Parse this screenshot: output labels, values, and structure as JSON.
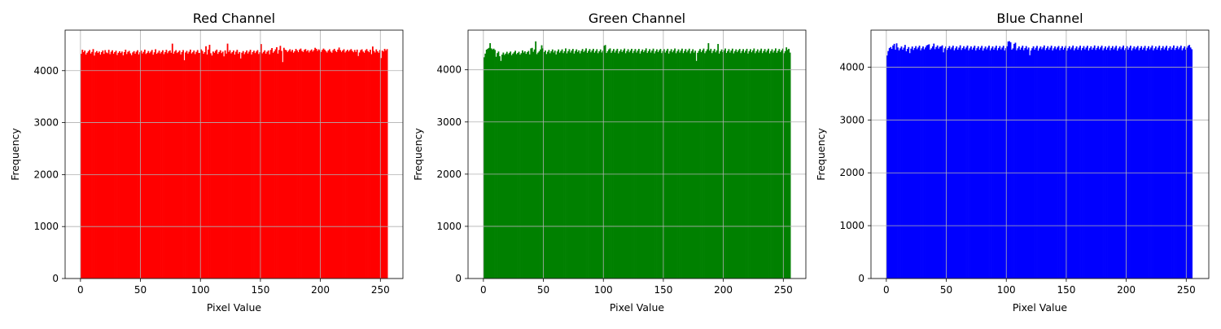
{
  "chart_data": [
    {
      "type": "bar",
      "title": "Red Channel",
      "xlabel": "Pixel Value",
      "ylabel": "Frequency",
      "xlim": [
        -12.8,
        268.8
      ],
      "ylim": [
        0,
        4780
      ],
      "xticks": [
        0,
        50,
        100,
        150,
        200,
        250
      ],
      "yticks": [
        0,
        1000,
        2000,
        3000,
        4000
      ],
      "grid": true,
      "color": "#ff0000",
      "bins": 256,
      "bin_range": [
        0,
        256
      ],
      "values": [
        4324,
        4402,
        4356,
        4387,
        4311,
        4345,
        4372,
        4398,
        4330,
        4361,
        4415,
        4290,
        4352,
        4377,
        4341,
        4368,
        4309,
        4356,
        4388,
        4323,
        4395,
        4350,
        4336,
        4401,
        4318,
        4364,
        4392,
        4327,
        4358,
        4384,
        4302,
        4345,
        4373,
        4339,
        4367,
        4295,
        4356,
        4404,
        4320,
        4362,
        4381,
        4333,
        4298,
        4351,
        4376,
        4327,
        4365,
        4393,
        4314,
        4355,
        4386,
        4330,
        4362,
        4405,
        4321,
        4344,
        4379,
        4337,
        4366,
        4398,
        4308,
        4353,
        4412,
        4325,
        4348,
        4384,
        4332,
        4361,
        4393,
        4318,
        4356,
        4401,
        4336,
        4372,
        4390,
        4345,
        4520,
        4326,
        4368,
        4395,
        4339,
        4360,
        4387,
        4312,
        4357,
        4396,
        4200,
        4350,
        4381,
        4329,
        4364,
        4405,
        4331,
        4354,
        4388,
        4319,
        4362,
        4397,
        4340,
        4343,
        4410,
        4382,
        4325,
        4356,
        4470,
        4312,
        4405,
        4498,
        4335,
        4291,
        4368,
        4344,
        4380,
        4405,
        4323,
        4359,
        4392,
        4338,
        4366,
        4275,
        4390,
        4328,
        4520,
        4361,
        4394,
        4332,
        4356,
        4388,
        4310,
        4365,
        4401,
        4327,
        4359,
        4235,
        4346,
        4377,
        4318,
        4354,
        4389,
        4330,
        4366,
        4402,
        4312,
        4358,
        4385,
        4338,
        4369,
        4396,
        4320,
        4355,
        4512,
        4333,
        4361,
        4392,
        4327,
        4364,
        4388,
        4315,
        4399,
        4435,
        4345,
        4372,
        4410,
        4452,
        4328,
        4398,
        4478,
        4381,
        4165,
        4440,
        4402,
        4392,
        4358,
        4385,
        4412,
        4368,
        4400,
        4345,
        4372,
        4418,
        4390,
        4356,
        4405,
        4425,
        4380,
        4360,
        4398,
        4415,
        4372,
        4395,
        4350,
        4385,
        4408,
        4368,
        4395,
        4440,
        4420,
        4380,
        4410,
        4392,
        4360,
        4398,
        4425,
        4402,
        4375,
        4350,
        4388,
        4412,
        4368,
        4345,
        4395,
        4420,
        4380,
        4358,
        4405,
        4445,
        4395,
        4362,
        4388,
        4412,
        4350,
        4378,
        4402,
        4370,
        4395,
        4415,
        4380,
        4355,
        4398,
        4360,
        4405,
        4282,
        4350,
        4395,
        4410,
        4368,
        4345,
        4392,
        4415,
        4378,
        4355,
        4402,
        4318,
        4465,
        4380,
        4350,
        4410,
        4372,
        4345,
        4398,
        4242,
        4385,
        4368,
        4420,
        4388,
        4415
      ]
    },
    {
      "type": "bar",
      "title": "Green Channel",
      "xlabel": "Pixel Value",
      "ylabel": "Frequency",
      "xlim": [
        -12.8,
        268.8
      ],
      "ylim": [
        0,
        4760
      ],
      "xticks": [
        0,
        50,
        100,
        150,
        200,
        250
      ],
      "yticks": [
        0,
        1000,
        2000,
        3000,
        4000
      ],
      "grid": true,
      "color": "#008000",
      "bins": 256,
      "bin_range": [
        0,
        256
      ],
      "values": [
        4240,
        4310,
        4385,
        4402,
        4420,
        4510,
        4410,
        4390,
        4405,
        4380,
        4250,
        4320,
        4350,
        4260,
        4170,
        4290,
        4330,
        4285,
        4310,
        4345,
        4300,
        4325,
        4350,
        4280,
        4310,
        4335,
        4365,
        4300,
        4322,
        4346,
        4290,
        4318,
        4372,
        4330,
        4354,
        4305,
        4338,
        4362,
        4295,
        4410,
        4420,
        4345,
        4390,
        4545,
        4300,
        4330,
        4355,
        4390,
        4470,
        4410,
        4340,
        4370,
        4302,
        4345,
        4380,
        4318,
        4356,
        4390,
        4332,
        4368,
        4295,
        4352,
        4390,
        4328,
        4360,
        4392,
        4320,
        4356,
        4410,
        4315,
        4355,
        4395,
        4330,
        4368,
        4400,
        4312,
        4358,
        4392,
        4340,
        4372,
        4315,
        4362,
        4398,
        4340,
        4368,
        4410,
        4325,
        4362,
        4398,
        4335,
        4370,
        4402,
        4328,
        4360,
        4395,
        4318,
        4355,
        4390,
        4332,
        4366,
        4460,
        4475,
        4322,
        4356,
        4390,
        4410,
        4325,
        4362,
        4398,
        4330,
        4368,
        4402,
        4315,
        4356,
        4392,
        4340,
        4372,
        4406,
        4318,
        4358,
        4395,
        4335,
        4368,
        4402,
        4320,
        4362,
        4398,
        4330,
        4366,
        4400,
        4312,
        4355,
        4390,
        4338,
        4372,
        4410,
        4322,
        4358,
        4396,
        4330,
        4368,
        4405,
        4315,
        4356,
        4392,
        4338,
        4372,
        4400,
        4320,
        4360,
        4396,
        4330,
        4366,
        4402,
        4312,
        4358,
        4395,
        4336,
        4370,
        4408,
        4318,
        4356,
        4392,
        4330,
        4368,
        4405,
        4320,
        4360,
        4398,
        4335,
        4370,
        4404,
        4315,
        4358,
        4394,
        4330,
        4366,
        4170,
        4325,
        4362,
        4398,
        4338,
        4372,
        4406,
        4318,
        4356,
        4392,
        4510,
        4368,
        4402,
        4320,
        4362,
        4398,
        4335,
        4370,
        4495,
        4312,
        4355,
        4390,
        4338,
        4372,
        4408,
        4322,
        4358,
        4396,
        4330,
        4368,
        4405,
        4315,
        4356,
        4392,
        4338,
        4372,
        4400,
        4320,
        4360,
        4396,
        4330,
        4366,
        4402,
        4312,
        4358,
        4395,
        4336,
        4370,
        4408,
        4318,
        4356,
        4392,
        4330,
        4368,
        4405,
        4320,
        4360,
        4398,
        4335,
        4370,
        4404,
        4315,
        4358,
        4394,
        4330,
        4366,
        4410,
        4325,
        4362,
        4398,
        4338,
        4372,
        4406,
        4318,
        4356,
        4430,
        4380,
        4402,
        4330
      ]
    },
    {
      "type": "bar",
      "title": "Blue Channel",
      "xlabel": "Pixel Value",
      "ylabel": "Frequency",
      "xlim": [
        -12.8,
        268.8
      ],
      "ylim": [
        0,
        4700
      ],
      "xticks": [
        0,
        50,
        100,
        150,
        200,
        250
      ],
      "yticks": [
        0,
        1000,
        2000,
        3000,
        4000
      ],
      "grid": true,
      "color": "#0000ff",
      "bins": 256,
      "bin_range": [
        0,
        256
      ],
      "values": [
        4220,
        4305,
        4360,
        4380,
        4345,
        4410,
        4440,
        4330,
        4450,
        4372,
        4318,
        4356,
        4390,
        4330,
        4368,
        4420,
        4300,
        4345,
        4380,
        4265,
        4350,
        4390,
        4325,
        4362,
        4398,
        4340,
        4372,
        4406,
        4318,
        4356,
        4392,
        4338,
        4372,
        4410,
        4420,
        4432,
        4330,
        4356,
        4392,
        4445,
        4340,
        4380,
        4410,
        4350,
        4385,
        4392,
        4412,
        4280,
        4356,
        4390,
        4325,
        4362,
        4398,
        4338,
        4372,
        4406,
        4318,
        4356,
        4392,
        4330,
        4368,
        4412,
        4325,
        4360,
        4396,
        4340,
        4372,
        4408,
        4318,
        4356,
        4392,
        4332,
        4368,
        4405,
        4315,
        4358,
        4394,
        4330,
        4366,
        4402,
        4312,
        4355,
        4390,
        4335,
        4370,
        4406,
        4318,
        4356,
        4392,
        4330,
        4368,
        4405,
        4320,
        4360,
        4398,
        4335,
        4370,
        4404,
        4315,
        4358,
        4394,
        4485,
        4490,
        4470,
        4330,
        4355,
        4440,
        4462,
        4318,
        4356,
        4392,
        4330,
        4368,
        4405,
        4320,
        4360,
        4398,
        4335,
        4370,
        4225,
        4315,
        4358,
        4394,
        4330,
        4366,
        4402,
        4312,
        4355,
        4390,
        4338,
        4372,
        4410,
        4322,
        4358,
        4396,
        4330,
        4368,
        4405,
        4315,
        4356,
        4392,
        4338,
        4372,
        4400,
        4320,
        4360,
        4396,
        4330,
        4366,
        4402,
        4312,
        4358,
        4395,
        4336,
        4370,
        4408,
        4318,
        4356,
        4392,
        4330,
        4368,
        4405,
        4320,
        4360,
        4398,
        4335,
        4370,
        4404,
        4315,
        4358,
        4394,
        4330,
        4366,
        4410,
        4325,
        4362,
        4398,
        4338,
        4372,
        4406,
        4318,
        4356,
        4392,
        4330,
        4368,
        4402,
        4320,
        4362,
        4398,
        4335,
        4370,
        4404,
        4312,
        4355,
        4390,
        4338,
        4372,
        4408,
        4322,
        4358,
        4396,
        4330,
        4368,
        4405,
        4315,
        4356,
        4392,
        4338,
        4372,
        4400,
        4320,
        4360,
        4396,
        4330,
        4366,
        4402,
        4312,
        4358,
        4395,
        4336,
        4370,
        4408,
        4318,
        4356,
        4392,
        4330,
        4368,
        4405,
        4320,
        4360,
        4398,
        4335,
        4370,
        4404,
        4315,
        4358,
        4394,
        4330,
        4366,
        4410,
        4325,
        4362,
        4398,
        4338,
        4372,
        4406,
        4318,
        4356,
        4392,
        4330,
        4368,
        4402,
        4420,
        4372,
        4338
      ]
    }
  ]
}
